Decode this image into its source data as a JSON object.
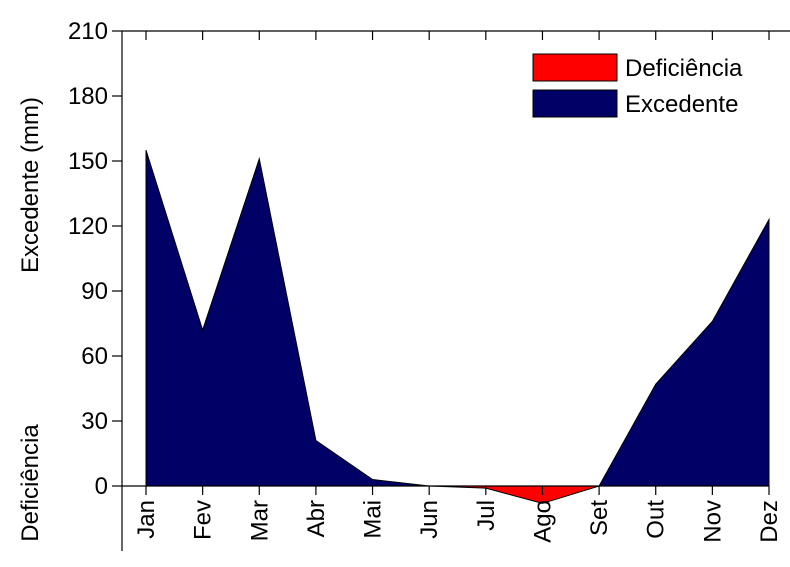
{
  "chart_data": {
    "type": "area",
    "ylabel": "Excedente (mm)",
    "ylabel_lower": "Deficiência",
    "categories": [
      "Jan",
      "Fev",
      "Mar",
      "Abr",
      "Mai",
      "Jun",
      "Jul",
      "Ago",
      "Set",
      "Out",
      "Nov",
      "Dez"
    ],
    "series": [
      {
        "name": "Deficiência",
        "color": "#ff0000",
        "values": [
          0,
          0,
          0,
          0,
          0,
          0,
          -1,
          -8,
          0,
          0,
          0,
          0
        ]
      },
      {
        "name": "Excedente",
        "color": "#000066",
        "values": [
          155,
          72,
          151,
          21,
          3,
          0,
          0,
          0,
          0,
          47,
          76,
          123
        ]
      }
    ],
    "ylim": [
      -30,
      210
    ],
    "yticks": [
      0,
      30,
      60,
      90,
      120,
      150,
      180,
      210
    ],
    "legend": "upper right",
    "grid": false
  }
}
